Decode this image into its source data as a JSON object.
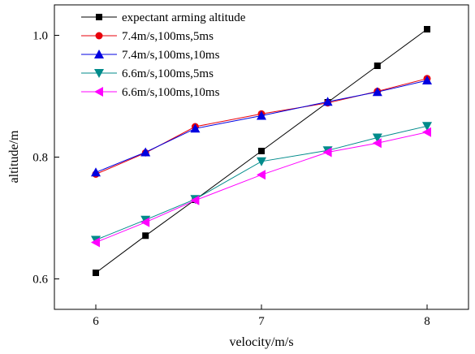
{
  "chart_data": {
    "type": "line",
    "xlabel": "velocity/m/s",
    "ylabel": "altitude/m",
    "xlim": [
      5.75,
      8.25
    ],
    "ylim": [
      0.55,
      1.05
    ],
    "xticks": [
      "6",
      "7",
      "8"
    ],
    "yticks": [
      "0.6",
      "0.8",
      "1.0"
    ],
    "grid": false,
    "legend_position": "top-left",
    "series": [
      {
        "name": "expectant arming altitude",
        "marker": "square",
        "color": "#000000",
        "x": [
          6.0,
          6.3,
          6.6,
          7.0,
          7.4,
          7.7,
          8.0
        ],
        "y": [
          0.61,
          0.671,
          0.73,
          0.81,
          0.89,
          0.95,
          1.01
        ]
      },
      {
        "name": "7.4m/s,100ms,5ms",
        "marker": "circle",
        "color": "#e8000b",
        "x": [
          6.0,
          6.3,
          6.6,
          7.0,
          7.4,
          7.7,
          8.0
        ],
        "y": [
          0.772,
          0.807,
          0.85,
          0.871,
          0.889,
          0.908,
          0.929
        ]
      },
      {
        "name": "7.4m/s,100ms,10ms",
        "marker": "triangle-up",
        "color": "#0000e0",
        "x": [
          6.0,
          6.3,
          6.6,
          7.0,
          7.4,
          7.7,
          8.0
        ],
        "y": [
          0.775,
          0.808,
          0.847,
          0.868,
          0.891,
          0.907,
          0.926
        ]
      },
      {
        "name": "6.6m/s,100ms,5ms",
        "marker": "triangle-down",
        "color": "#008b8b",
        "x": [
          6.0,
          6.3,
          6.6,
          7.0,
          7.4,
          7.7,
          8.0
        ],
        "y": [
          0.664,
          0.697,
          0.731,
          0.793,
          0.811,
          0.832,
          0.851
        ]
      },
      {
        "name": "6.6m/s,100ms,10ms",
        "marker": "triangle-left",
        "color": "#ff00ff",
        "x": [
          6.0,
          6.3,
          6.6,
          7.0,
          7.4,
          7.7,
          8.0
        ],
        "y": [
          0.66,
          0.693,
          0.729,
          0.771,
          0.808,
          0.823,
          0.841
        ]
      }
    ]
  }
}
